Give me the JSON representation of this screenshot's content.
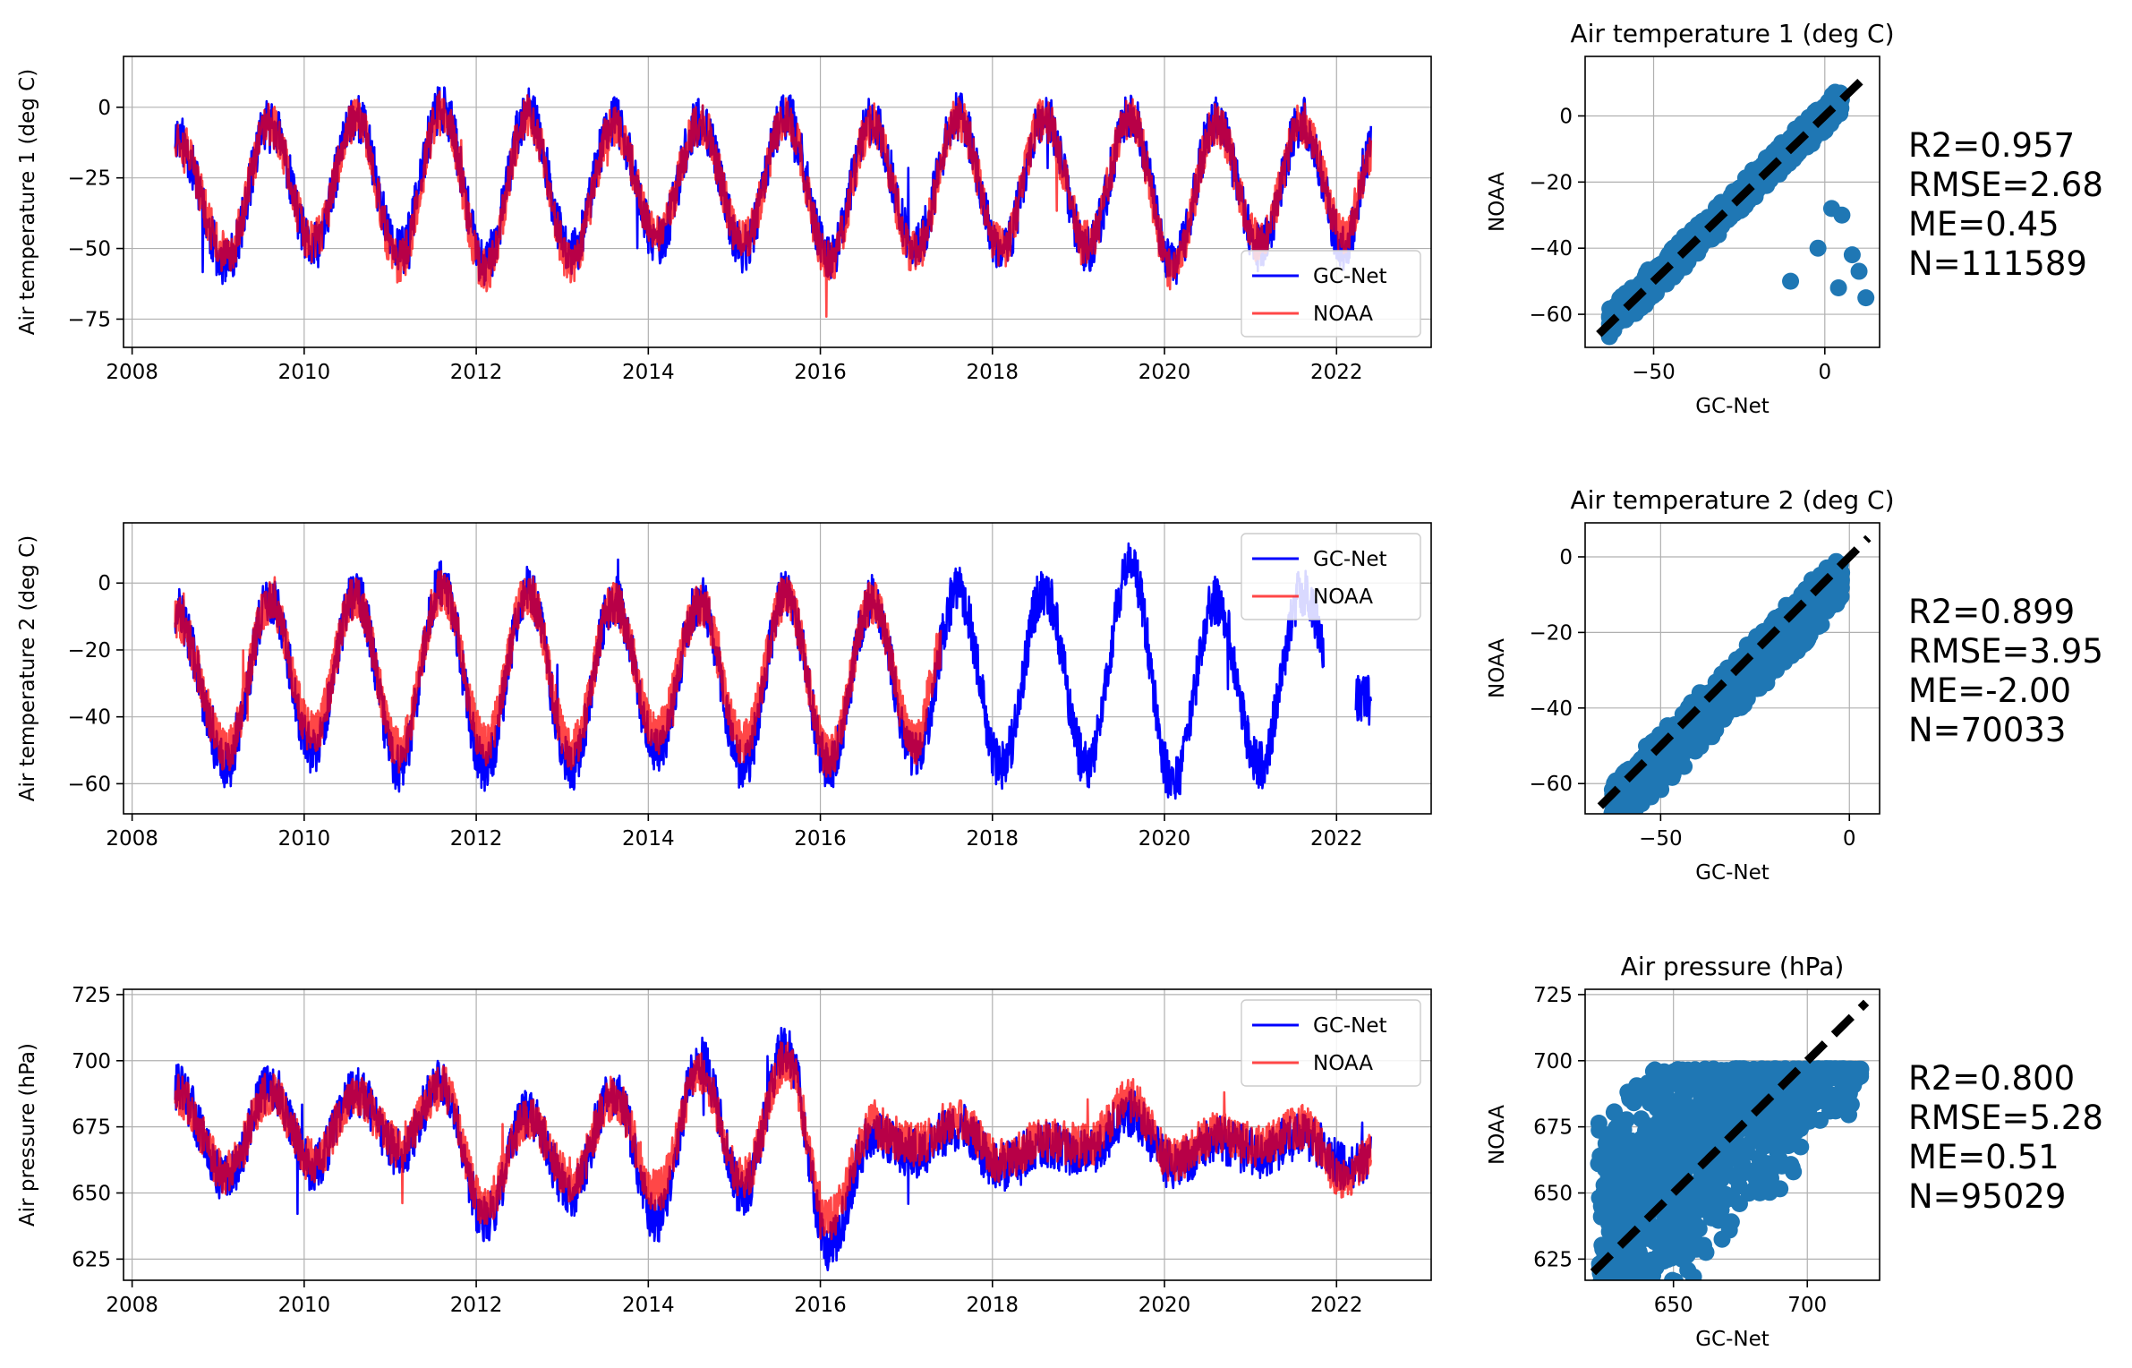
{
  "figure": {
    "ts_xticks": [
      "2008",
      "2010",
      "2012",
      "2014",
      "2016",
      "2018",
      "2020",
      "2022"
    ],
    "ts_xlim": [
      2007.9,
      2023.1
    ],
    "scatter_xlabel": "GC-Net",
    "scatter_ylabel": "NOAA",
    "colors": {
      "gcnet": "#0000ff",
      "noaa": "#ff0000",
      "overlap": "#b0004a",
      "scatter": "#1f77b4",
      "grid": "#b0b0b0"
    }
  },
  "chart_data": [
    {
      "type": "line",
      "ylabel": "Air temperature 1 (deg C)",
      "ylim": [
        -85,
        18
      ],
      "yticks": [
        0,
        -25,
        -50,
        -75
      ],
      "grid": true,
      "legend_placement": "lower-right",
      "series": [
        {
          "name": "GC-Net",
          "color": "#0000ff",
          "x": [
            2008.5,
            2009.1,
            2009.6,
            2010.1,
            2010.6,
            2011.1,
            2011.6,
            2012.1,
            2012.6,
            2013.1,
            2013.6,
            2014.1,
            2014.6,
            2015.1,
            2015.6,
            2016.1,
            2016.6,
            2017.1,
            2017.6,
            2018.1,
            2018.6,
            2019.1,
            2019.6,
            2020.1,
            2020.6,
            2021.1,
            2021.6,
            2022.1,
            2022.4
          ],
          "y": [
            -10,
            -55,
            -5,
            -50,
            -3,
            -52,
            0,
            -55,
            -2,
            -52,
            -5,
            -48,
            -5,
            -50,
            -3,
            -53,
            -5,
            -50,
            -3,
            -52,
            -3,
            -50,
            -3,
            -55,
            -5,
            -50,
            -5,
            -50,
            -15
          ]
        },
        {
          "name": "NOAA",
          "color": "#ff0000",
          "x": [
            2008.5,
            2009.1,
            2009.6,
            2010.1,
            2010.6,
            2011.1,
            2011.6,
            2012.1,
            2012.6,
            2013.1,
            2013.6,
            2014.1,
            2014.6,
            2015.1,
            2015.6,
            2016.1,
            2016.6,
            2017.1,
            2017.6,
            2018.1,
            2018.6,
            2019.1,
            2019.6,
            2020.1,
            2020.6,
            2021.1,
            2021.6,
            2022.1,
            2022.4
          ],
          "y": [
            -10,
            -52,
            -6,
            -48,
            -4,
            -55,
            -2,
            -58,
            -3,
            -55,
            -6,
            -45,
            -6,
            -48,
            -4,
            -55,
            -6,
            -52,
            -4,
            -50,
            -4,
            -48,
            -4,
            -58,
            -6,
            -48,
            -6,
            -45,
            -18
          ]
        }
      ]
    },
    {
      "type": "scatter",
      "title": "Air temperature 1 (deg C)",
      "xlabel": "GC-Net",
      "ylabel": "NOAA",
      "xlim": [
        -70,
        16
      ],
      "ylim": [
        -70,
        18
      ],
      "xticks": [
        -50,
        0
      ],
      "yticks": [
        0,
        -20,
        -40,
        -60
      ],
      "identity_line": [
        -66,
        12
      ],
      "band": {
        "x0": -63,
        "x1": 5,
        "offset_below": -5,
        "offset_above": 5
      },
      "outliers": [
        [
          2,
          -28
        ],
        [
          5,
          -30
        ],
        [
          -2,
          -40
        ],
        [
          8,
          -42
        ],
        [
          10,
          -47
        ],
        [
          -10,
          -50
        ],
        [
          12,
          -55
        ],
        [
          4,
          -52
        ]
      ],
      "stats": [
        "R2=0.957",
        "RMSE=2.68",
        "ME=0.45",
        "N=111589"
      ]
    },
    {
      "type": "line",
      "ylabel": "Air temperature 2 (deg C)",
      "ylim": [
        -69,
        18
      ],
      "yticks": [
        0,
        -20,
        -40,
        -60
      ],
      "grid": true,
      "legend_placement": "upper-right",
      "series": [
        {
          "name": "GC-Net",
          "color": "#0000ff",
          "x": [
            2008.5,
            2009.1,
            2009.6,
            2010.1,
            2010.6,
            2011.1,
            2011.6,
            2012.1,
            2012.6,
            2013.1,
            2013.6,
            2014.1,
            2014.6,
            2015.1,
            2015.6,
            2016.1,
            2016.6,
            2017.1,
            2017.6,
            2018.1,
            2018.6,
            2019.1,
            2019.6,
            2020.1,
            2020.6,
            2021.1,
            2021.6,
            2022.1,
            2022.4
          ],
          "y": [
            -8,
            -55,
            -5,
            -50,
            -3,
            -55,
            0,
            -55,
            -2,
            -55,
            -5,
            -50,
            -5,
            -55,
            -3,
            -55,
            -5,
            -52,
            -2,
            -55,
            -2,
            -55,
            5,
            -60,
            -5,
            -55,
            -3,
            -35,
            -35
          ]
        },
        {
          "name": "NOAA",
          "color": "#ff0000",
          "x": [
            2008.5,
            2009.1,
            2009.6,
            2010.1,
            2010.6,
            2011.1,
            2011.6,
            2012.1,
            2012.6,
            2013.1,
            2013.6,
            2014.1,
            2014.6,
            2015.1,
            2015.6,
            2016.1,
            2016.6,
            2017.1,
            2017.4
          ],
          "y": [
            -10,
            -50,
            -6,
            -45,
            -4,
            -50,
            -2,
            -48,
            -3,
            -50,
            -6,
            -45,
            -6,
            -48,
            -4,
            -52,
            -6,
            -48,
            -20
          ]
        }
      ]
    },
    {
      "type": "scatter",
      "title": "Air temperature 2 (deg C)",
      "xlabel": "GC-Net",
      "ylabel": "NOAA",
      "xlim": [
        -70,
        8
      ],
      "ylim": [
        -68,
        9
      ],
      "xticks": [
        -50,
        0
      ],
      "yticks": [
        0,
        -20,
        -40,
        -60
      ],
      "identity_line": [
        -66,
        5
      ],
      "band": {
        "x0": -63,
        "x1": -2,
        "offset_below": -12,
        "offset_above": 4
      },
      "outliers": [],
      "stats": [
        "R2=0.899",
        "RMSE=3.95",
        "ME=-2.00",
        "N=70033"
      ]
    },
    {
      "type": "line",
      "ylabel": "Air pressure (hPa)",
      "ylim": [
        617,
        727
      ],
      "yticks": [
        725,
        700,
        675,
        650,
        625
      ],
      "grid": true,
      "legend_placement": "upper-right",
      "series": [
        {
          "name": "GC-Net",
          "color": "#0000ff",
          "x": [
            2008.5,
            2009.1,
            2009.6,
            2010.1,
            2010.6,
            2011.1,
            2011.6,
            2012.1,
            2012.6,
            2013.1,
            2013.6,
            2014.1,
            2014.6,
            2015.1,
            2015.6,
            2016.1,
            2016.6,
            2017.1,
            2017.6,
            2018.1,
            2018.6,
            2019.1,
            2019.6,
            2020.1,
            2020.6,
            2021.1,
            2021.6,
            2022.1,
            2022.4
          ],
          "y": [
            690,
            655,
            690,
            660,
            688,
            665,
            692,
            640,
            680,
            650,
            688,
            640,
            700,
            650,
            705,
            630,
            672,
            665,
            675,
            660,
            668,
            665,
            680,
            660,
            670,
            665,
            672,
            660,
            662
          ]
        },
        {
          "name": "NOAA",
          "color": "#ff0000",
          "x": [
            2008.5,
            2009.1,
            2009.6,
            2010.1,
            2010.6,
            2011.1,
            2011.6,
            2012.1,
            2012.6,
            2013.1,
            2013.6,
            2014.1,
            2014.6,
            2015.1,
            2015.6,
            2016.1,
            2016.6,
            2017.1,
            2017.6,
            2018.1,
            2018.6,
            2019.1,
            2019.6,
            2020.1,
            2020.6,
            2021.1,
            2021.6,
            2022.1,
            2022.4
          ],
          "y": [
            688,
            658,
            688,
            662,
            686,
            668,
            690,
            645,
            678,
            655,
            686,
            650,
            695,
            655,
            700,
            640,
            675,
            668,
            678,
            662,
            670,
            668,
            685,
            662,
            672,
            668,
            675,
            655,
            664
          ]
        }
      ]
    },
    {
      "type": "scatter",
      "title": "Air pressure (hPa)",
      "xlabel": "GC-Net",
      "ylabel": "NOAA",
      "xlim": [
        617,
        727
      ],
      "ylim": [
        617,
        727
      ],
      "xticks": [
        650,
        700
      ],
      "yticks": [
        725,
        700,
        675,
        650,
        625
      ],
      "identity_line": [
        620,
        722
      ],
      "band": {
        "x0": 622,
        "x1": 720,
        "offset_below": -40,
        "offset_above": 60
      },
      "outliers": [],
      "stats": [
        "R2=0.800",
        "RMSE=5.28",
        "ME=0.51",
        "N=95029"
      ]
    }
  ]
}
